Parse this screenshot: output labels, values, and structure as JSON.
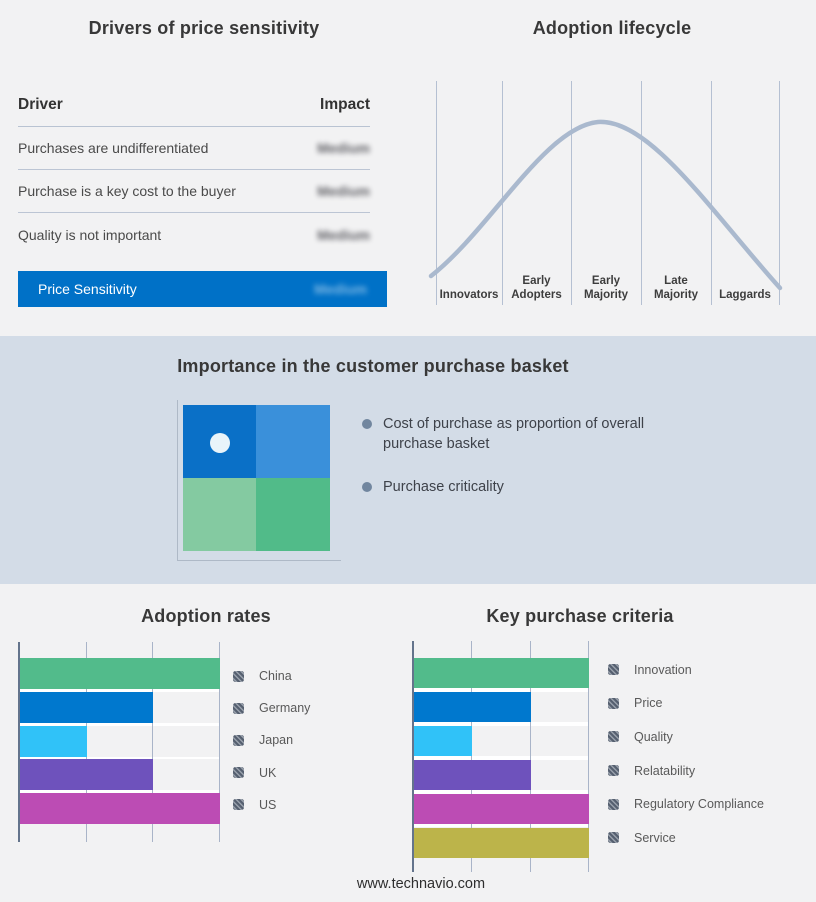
{
  "colors": {
    "page_bg": "#f2f2f3",
    "band_bg": "#d3dce7",
    "highlight_row_bg": "#0071c7",
    "curve": "#aab9ce",
    "quad_tl": "#0a70c7",
    "quad_tr": "#3a90da",
    "quad_bl": "#84caa1",
    "quad_br": "#51bb89",
    "quad_dot": "#e9f4fa"
  },
  "drivers_panel": {
    "title": "Drivers of price sensitivity",
    "columns": {
      "driver": "Driver",
      "impact": "Impact"
    },
    "rows": [
      {
        "driver": "Purchases are undifferentiated",
        "impact": "Medium",
        "impact_blurred": true
      },
      {
        "driver": "Purchase is a key cost to the buyer",
        "impact": "Medium",
        "impact_blurred": true
      },
      {
        "driver": "Quality is not important",
        "impact": "Medium",
        "impact_blurred": true
      }
    ],
    "highlight_row": {
      "driver": "Price Sensitivity",
      "impact": "Medium",
      "impact_blurred": true
    }
  },
  "lifecycle_panel": {
    "title": "Adoption lifecycle"
  },
  "basket_panel": {
    "title": "Importance in the customer purchase basket",
    "bullets": [
      "Cost of purchase as proportion of overall purchase basket",
      "Purchase criticality"
    ]
  },
  "footer": "www.technavio.com",
  "chart_data": [
    {
      "id": "adoption-lifecycle",
      "type": "line",
      "title": "Adoption lifecycle",
      "categories": [
        "Innovators",
        "Early Adopters",
        "Early Majority",
        "Late Majority",
        "Laggards"
      ],
      "shape": "bell curve rising from Innovators, peaking over Early Majority, falling to Laggards",
      "grid": true,
      "legend_position": "none"
    },
    {
      "id": "adoption-rates",
      "type": "bar",
      "orientation": "horizontal",
      "title": "Adoption rates",
      "categories": [
        "China",
        "Germany",
        "Japan",
        "UK",
        "US"
      ],
      "values": [
        3,
        2,
        1,
        2,
        3
      ],
      "xlim": [
        0,
        3
      ],
      "gridlines": [
        1,
        2,
        3
      ],
      "colors": [
        "#52bb8b",
        "#0078ce",
        "#30c2f8",
        "#6e52bc",
        "#bc4cb4"
      ],
      "legend_position": "right"
    },
    {
      "id": "key-purchase-criteria",
      "type": "bar",
      "orientation": "horizontal",
      "title": "Key purchase criteria",
      "categories": [
        "Innovation",
        "Price",
        "Quality",
        "Relatability",
        "Regulatory Compliance",
        "Service"
      ],
      "values": [
        3,
        2,
        1,
        2,
        3,
        3
      ],
      "xlim": [
        0,
        3
      ],
      "gridlines": [
        1,
        2,
        3
      ],
      "colors": [
        "#52bb8b",
        "#0078ce",
        "#30c2f8",
        "#6e52bc",
        "#bc4cb4",
        "#bcb44a"
      ],
      "legend_position": "right"
    },
    {
      "id": "purchase-basket-quadrant",
      "type": "heatmap",
      "title": "Importance in the customer purchase basket",
      "cells": [
        [
          "#0a70c7",
          "#3a90da"
        ],
        [
          "#84caa1",
          "#51bb89"
        ]
      ],
      "marker": {
        "row": 0,
        "col": 0,
        "note": "white dot in upper-left quadrant"
      }
    }
  ]
}
